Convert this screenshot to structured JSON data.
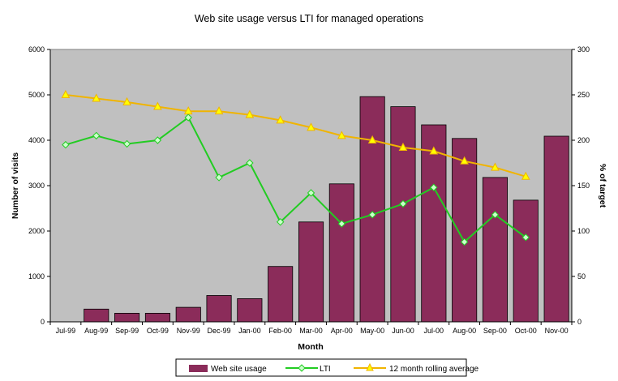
{
  "chart_data": {
    "type": "bar",
    "title": "Web site usage versus LTI for managed operations",
    "xlabel": "Month",
    "ylabel": "Number of visits",
    "y2label": "% of target",
    "categories": [
      "Jul-99",
      "Aug-99",
      "Sep-99",
      "Oct-99",
      "Nov-99",
      "Dec-99",
      "Jan-00",
      "Feb-00",
      "Mar-00",
      "Apr-00",
      "May-00",
      "Jun-00",
      "Jul-00",
      "Aug-00",
      "Sep-00",
      "Oct-00",
      "Nov-00"
    ],
    "ylim": [
      0,
      6000
    ],
    "yticks": [
      0,
      1000,
      2000,
      3000,
      4000,
      5000,
      6000
    ],
    "y2lim": [
      0,
      300
    ],
    "y2ticks": [
      0,
      50,
      100,
      150,
      200,
      250,
      300
    ],
    "plot_background": "#c0c0c0",
    "grid": false,
    "legend_position": "bottom",
    "series": [
      {
        "name": "Web site usage",
        "type": "bar",
        "axis": "left",
        "color": "#8b2c5a",
        "values": [
          0,
          280,
          190,
          190,
          320,
          580,
          510,
          1220,
          2200,
          3040,
          4960,
          4740,
          4340,
          4040,
          3180,
          2680,
          4090
        ]
      },
      {
        "name": "LTI",
        "type": "line",
        "axis": "right",
        "color": "#22cc22",
        "marker": "diamond",
        "values": [
          195,
          205,
          196,
          200,
          225,
          159,
          175,
          110,
          142,
          108,
          118,
          130,
          148,
          88,
          118,
          93,
          null
        ]
      },
      {
        "name": "12 month rolling average",
        "type": "line",
        "axis": "right",
        "color": "#f0b400",
        "marker": "triangle",
        "values": [
          250,
          246,
          242,
          237,
          232,
          232,
          228,
          222,
          214,
          205,
          200,
          192,
          188,
          177,
          170,
          160,
          null
        ]
      }
    ]
  }
}
